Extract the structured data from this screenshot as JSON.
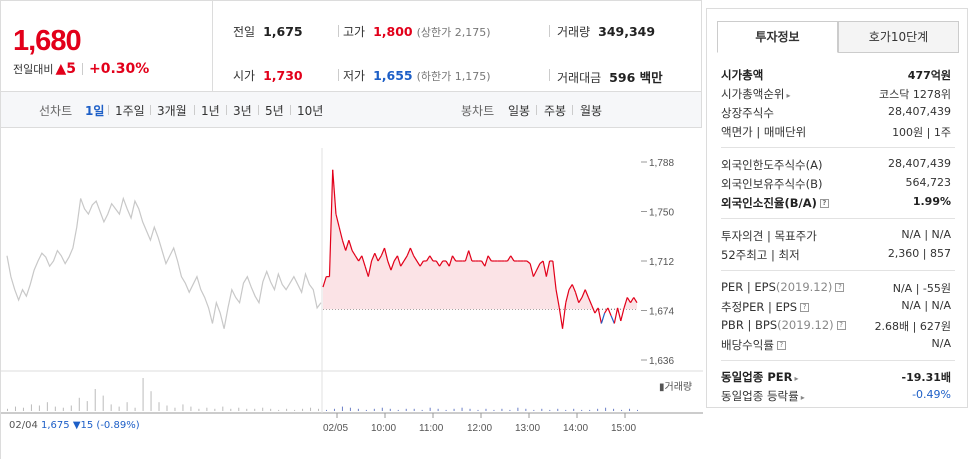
{
  "quote": {
    "price": "1,680",
    "change_label": "전일대비",
    "change_arrow": "▲",
    "change_value": "5",
    "change_rate": "+0.30%"
  },
  "stats": {
    "prev_close_label": "전일",
    "prev_close": "1,675",
    "high_label": "고가",
    "high": "1,800",
    "upper_limit": "(상한가 2,175)",
    "volume_label": "거래량",
    "volume": "349,349",
    "open_label": "시가",
    "open": "1,730",
    "low_label": "저가",
    "low": "1,655",
    "lower_limit": "(하한가 1,175)",
    "amount_label": "거래대금",
    "amount": "596 백만"
  },
  "toolbar": {
    "line_chart_label": "선차트",
    "periods": [
      "1일",
      "1주일",
      "3개월",
      "1년",
      "3년",
      "5년",
      "10년"
    ],
    "active_period": "1일",
    "candle_chart_label": "봉차트",
    "candle_periods": [
      "일봉",
      "주봉",
      "월봉"
    ]
  },
  "chart": {
    "y_ticks": [
      "1,788",
      "1,750",
      "1,712",
      "1,674",
      "1,636"
    ],
    "volume_label": "▮거래량",
    "x_labels": [
      "02/04",
      "02/05",
      "10:00",
      "11:00",
      "12:00",
      "13:00",
      "14:00",
      "15:00"
    ],
    "prev_day_info": "1,675 ▼15 (-0.89%)",
    "prev_day_date": "02/04"
  },
  "chart_data": {
    "type": "line",
    "title": "",
    "xlabel": "",
    "ylabel": "",
    "ylim": [
      1636,
      1788
    ],
    "reference_price": 1675,
    "series": [
      {
        "name": "",
        "values": [
          1716,
          1700,
          1690,
          1682,
          1690,
          1685,
          1694,
          1705,
          1712,
          1718,
          1715,
          1708,
          1712,
          1720,
          1716,
          1710,
          1715,
          1722,
          1738,
          1760,
          1752,
          1748,
          1755,
          1758,
          1750,
          1742,
          1748,
          1756,
          1752,
          1748,
          1760,
          1752,
          1745,
          1758,
          1752,
          1742,
          1735,
          1728,
          1738,
          1730,
          1720,
          1710,
          1716,
          1722,
          1712,
          1700,
          1695,
          1688,
          1694,
          1700,
          1690,
          1684,
          1676,
          1664,
          1680,
          1672,
          1660,
          1676,
          1690,
          1684,
          1680,
          1695,
          1700,
          1692,
          1685,
          1680,
          1696,
          1704,
          1696,
          1690,
          1702,
          1694,
          1690,
          1695,
          1700,
          1694,
          1688,
          1702,
          1694,
          1690,
          1676,
          1680
        ]
      },
      {
        "name": "",
        "values": [
          1692,
          1700,
          1700,
          1782,
          1748,
          1738,
          1728,
          1720,
          1728,
          1720,
          1716,
          1712,
          1716,
          1708,
          1700,
          1712,
          1718,
          1712,
          1716,
          1722,
          1712,
          1705,
          1712,
          1716,
          1708,
          1712,
          1716,
          1722,
          1716,
          1712,
          1708,
          1712,
          1712,
          1716,
          1712,
          1712,
          1708,
          1712,
          1712,
          1708,
          1716,
          1712,
          1712,
          1712,
          1712,
          1720,
          1712,
          1712,
          1712,
          1712,
          1708,
          1716,
          1712,
          1712,
          1712,
          1712,
          1712,
          1712,
          1716,
          1712,
          1712,
          1712,
          1712,
          1712,
          1710,
          1700,
          1705,
          1710,
          1712,
          1700,
          1712,
          1712,
          1690,
          1676,
          1660,
          1680,
          1690,
          1694,
          1688,
          1680,
          1684,
          1690,
          1684,
          1678,
          1672,
          1676,
          1664,
          1672,
          1676,
          1670,
          1664,
          1676,
          1666,
          1676,
          1684,
          1680,
          1684,
          1680
        ]
      }
    ],
    "volume": [
      2,
      4,
      3,
      6,
      5,
      8,
      4,
      3,
      5,
      12,
      9,
      20,
      14,
      6,
      4,
      8,
      3,
      30,
      18,
      8,
      5,
      3,
      6,
      4,
      2,
      3,
      2,
      4,
      2,
      3,
      2,
      2,
      3,
      2,
      1,
      2,
      1,
      2,
      3,
      2,
      1,
      2,
      4,
      3,
      2,
      1,
      2,
      3,
      2,
      1,
      2,
      2,
      1,
      3,
      2,
      1,
      2,
      3,
      2,
      1,
      2,
      1,
      2,
      1,
      3,
      2,
      1,
      2,
      1,
      2,
      1,
      2,
      1,
      1,
      2,
      3,
      2,
      1,
      2,
      1
    ]
  },
  "panel": {
    "tab_info": "투자정보",
    "tab_quotes": "호가10단계",
    "market_cap_label": "시가총액",
    "market_cap": "477억원",
    "market_cap_rank_label": "시가총액순위",
    "market_cap_rank": "코스닥 1278위",
    "shares_label": "상장주식수",
    "shares": "28,407,439",
    "face_value_label": "액면가 | 매매단위",
    "face_value": "100원 | 1주",
    "foreign_limit_label": "외국인한도주식수(A)",
    "foreign_limit": "28,407,439",
    "foreign_hold_label": "외국인보유주식수(B)",
    "foreign_hold": "564,723",
    "foreign_ratio_label": "외국인소진율(B/A)",
    "foreign_ratio": "1.99%",
    "opinion_label": "투자의견 | 목표주가",
    "opinion": "N/A | N/A",
    "range_label": "52주최고 | 최저",
    "range": "2,360 | 857",
    "per_label": "PER | EPS",
    "per_year": "(2019.12)",
    "per": "N/A | -55원",
    "est_per_label": "추정PER | EPS",
    "est_per": "N/A | N/A",
    "pbr_label": "PBR | BPS",
    "pbr_year": "(2019.12)",
    "pbr": "2.68배 | 627원",
    "dividend_label": "배당수익률",
    "dividend": "N/A",
    "sector_per_label": "동일업종 PER",
    "sector_per": "-19.31배",
    "sector_change_label": "동일업종 등락률",
    "sector_change": "-0.49%",
    "hint_icon": "?"
  },
  "colors": {
    "up": "#e2001a",
    "down": "#1d5fc7",
    "prev_line": "#c8c8c8"
  }
}
